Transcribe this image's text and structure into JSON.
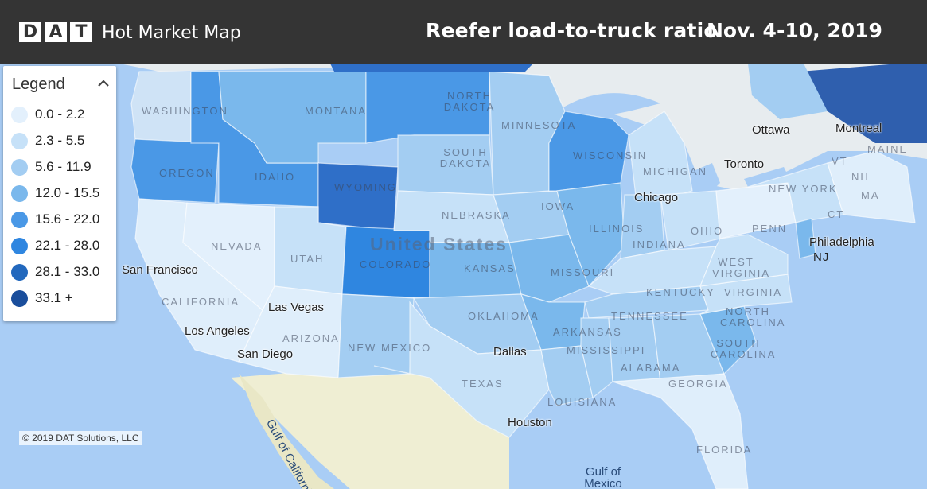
{
  "header": {
    "logo_letters": [
      "D",
      "A",
      "T"
    ],
    "app_title": "Hot Market Map",
    "map_title": "Reefer load-to-truck ratio",
    "date_range": "Nov. 4-10, 2019"
  },
  "legend": {
    "title": "Legend",
    "toggle_icon": "chevron-up-icon",
    "items": [
      {
        "label": "0.0 - 2.2",
        "color": "#e3f0fc"
      },
      {
        "label": "2.3 - 5.5",
        "color": "#c6e1f8"
      },
      {
        "label": "5.6 - 11.9",
        "color": "#a3cdf2"
      },
      {
        "label": "12.0 - 15.5",
        "color": "#7ab8ec"
      },
      {
        "label": "15.6 - 22.0",
        "color": "#4a98e6"
      },
      {
        "label": "22.1 - 28.0",
        "color": "#2f86e0"
      },
      {
        "label": "28.1 - 33.0",
        "color": "#2268bd"
      },
      {
        "label": "33.1 +",
        "color": "#1a4e9c"
      }
    ]
  },
  "map": {
    "country_label": "United States",
    "state_labels": [
      "WASHINGTON",
      "MONTANA",
      "NORTH DAKOTA",
      "MINNESOTA",
      "OREGON",
      "IDAHO",
      "SOUTH DAKOTA",
      "WISCONSIN",
      "MICHIGAN",
      "WYOMING",
      "NEBRASKA",
      "IOWA",
      "ILLINOIS",
      "INDIANA",
      "OHIO",
      "PENN",
      "NEVADA",
      "UTAH",
      "COLORADO",
      "KANSAS",
      "MISSOURI",
      "KENTUCKY",
      "WEST VIRGINIA",
      "VIRGINIA",
      "CALIFORNIA",
      "ARIZONA",
      "NEW MEXICO",
      "OKLAHOMA",
      "ARKANSAS",
      "TENNESSEE",
      "NORTH CAROLINA",
      "SOUTH CAROLINA",
      "MISSISSIPPI",
      "ALABAMA",
      "GEORGIA",
      "TEXAS",
      "LOUISIANA",
      "FLORIDA",
      "NEW YORK",
      "MAINE",
      "VT",
      "NH",
      "MA",
      "CT",
      "NJ"
    ],
    "cities": [
      "San Francisco",
      "Las Vegas",
      "Los Angeles",
      "San Diego",
      "Dallas",
      "Houston",
      "Chicago",
      "Toronto",
      "Ottawa",
      "Montreal",
      "Philadelphia"
    ],
    "water": [
      "Gulf of California",
      "Gulf of Mexico"
    ],
    "copyright": "© 2019 DAT Solutions, LLC"
  }
}
